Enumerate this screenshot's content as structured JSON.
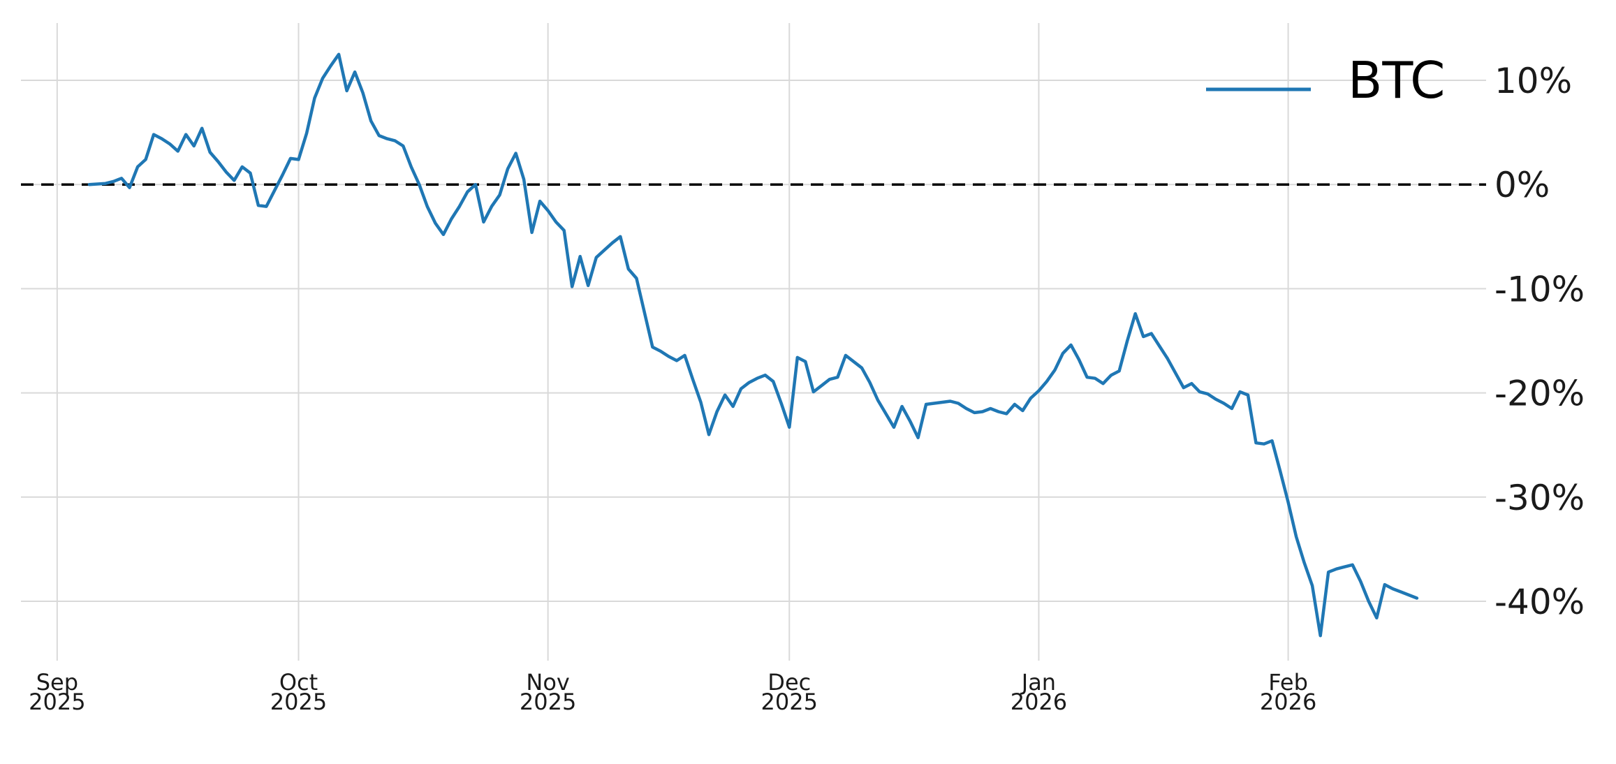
{
  "page": {
    "background_color": "#ffffff",
    "text_color": "#1a1a1a"
  },
  "chart_data": {
    "type": "line",
    "title": "",
    "grid": {
      "visible": true,
      "color": "#d9d9d9"
    },
    "legend": {
      "position": "upper-right",
      "entries": [
        {
          "label": "BTC",
          "color": "#1f77b4"
        }
      ]
    },
    "baseline": {
      "value": 0,
      "style": "dashed",
      "color": "#000000"
    },
    "x_axis": {
      "unit": "days since 2025-09-01",
      "xlim": [
        -4.5,
        177.6
      ],
      "ticks": [
        {
          "day": 0,
          "label": "Sep",
          "sublabel": "2025"
        },
        {
          "day": 30,
          "label": "Oct",
          "sublabel": "2025"
        },
        {
          "day": 61,
          "label": "Nov",
          "sublabel": "2025"
        },
        {
          "day": 91,
          "label": "Dec",
          "sublabel": "2025"
        },
        {
          "day": 122,
          "label": "Jan",
          "sublabel": "2026"
        },
        {
          "day": 153,
          "label": "Feb",
          "sublabel": "2026"
        }
      ]
    },
    "y_axis": {
      "side": "right",
      "unit": "percent change",
      "ylim": [
        -45.7,
        15.5
      ],
      "ticks": [
        {
          "value": 10,
          "label": "10%"
        },
        {
          "value": 0,
          "label": "0%"
        },
        {
          "value": -10,
          "label": "-10%"
        },
        {
          "value": -20,
          "label": "-20%"
        },
        {
          "value": -30,
          "label": "-30%"
        },
        {
          "value": -40,
          "label": "-40%"
        }
      ]
    },
    "series": [
      {
        "name": "BTC",
        "color": "#1f77b4",
        "start_date": "2025-09-05",
        "end_date": "2026-02-17",
        "points": [
          [
            4,
            0.0
          ],
          [
            5,
            0.05
          ],
          [
            6,
            0.1
          ],
          [
            7,
            0.3
          ],
          [
            8,
            0.6
          ],
          [
            9,
            -0.3
          ],
          [
            10,
            1.7
          ],
          [
            11,
            2.4
          ],
          [
            12,
            4.8
          ],
          [
            13,
            4.4
          ],
          [
            14,
            3.9
          ],
          [
            15,
            3.2
          ],
          [
            16,
            4.8
          ],
          [
            17,
            3.7
          ],
          [
            18,
            5.4
          ],
          [
            19,
            3.1
          ],
          [
            20,
            2.2
          ],
          [
            21,
            1.2
          ],
          [
            22,
            0.4
          ],
          [
            23,
            1.7
          ],
          [
            24,
            1.1
          ],
          [
            25,
            -2.0
          ],
          [
            26,
            -2.1
          ],
          [
            27,
            -0.6
          ],
          [
            28,
            0.9
          ],
          [
            29,
            2.5
          ],
          [
            30,
            2.4
          ],
          [
            31,
            4.9
          ],
          [
            32,
            8.3
          ],
          [
            33,
            10.2
          ],
          [
            34,
            11.4
          ],
          [
            35,
            12.5
          ],
          [
            36,
            9.0
          ],
          [
            37,
            10.8
          ],
          [
            38,
            8.8
          ],
          [
            39,
            6.1
          ],
          [
            40,
            4.7
          ],
          [
            41,
            4.4
          ],
          [
            42,
            4.2
          ],
          [
            43,
            3.7
          ],
          [
            44,
            1.7
          ],
          [
            45,
            0.0
          ],
          [
            46,
            -2.1
          ],
          [
            47,
            -3.7
          ],
          [
            48,
            -4.8
          ],
          [
            49,
            -3.3
          ],
          [
            50,
            -2.1
          ],
          [
            51,
            -0.7
          ],
          [
            52,
            0.0
          ],
          [
            53,
            -3.6
          ],
          [
            54,
            -2.1
          ],
          [
            55,
            -1.0
          ],
          [
            56,
            1.5
          ],
          [
            57,
            3.0
          ],
          [
            58,
            0.5
          ],
          [
            59,
            -4.6
          ],
          [
            60,
            -1.6
          ],
          [
            61,
            -2.5
          ],
          [
            62,
            -3.6
          ],
          [
            63,
            -4.4
          ],
          [
            64,
            -9.8
          ],
          [
            65,
            -6.9
          ],
          [
            66,
            -9.7
          ],
          [
            67,
            -7.0
          ],
          [
            68,
            -6.3
          ],
          [
            69,
            -5.6
          ],
          [
            70,
            -5.0
          ],
          [
            71,
            -8.1
          ],
          [
            72,
            -9.0
          ],
          [
            73,
            -12.3
          ],
          [
            74,
            -15.6
          ],
          [
            75,
            -16.0
          ],
          [
            76,
            -16.5
          ],
          [
            77,
            -16.9
          ],
          [
            78,
            -16.4
          ],
          [
            79,
            -18.7
          ],
          [
            80,
            -20.9
          ],
          [
            81,
            -24.0
          ],
          [
            82,
            -21.8
          ],
          [
            83,
            -20.2
          ],
          [
            84,
            -21.3
          ],
          [
            85,
            -19.6
          ],
          [
            86,
            -19.0
          ],
          [
            87,
            -18.6
          ],
          [
            88,
            -18.3
          ],
          [
            89,
            -18.9
          ],
          [
            90,
            -21.0
          ],
          [
            91,
            -23.3
          ],
          [
            92,
            -16.6
          ],
          [
            93,
            -17.0
          ],
          [
            94,
            -19.9
          ],
          [
            95,
            -19.3
          ],
          [
            96,
            -18.7
          ],
          [
            97,
            -18.5
          ],
          [
            98,
            -16.4
          ],
          [
            99,
            -17.0
          ],
          [
            100,
            -17.6
          ],
          [
            101,
            -19.0
          ],
          [
            102,
            -20.7
          ],
          [
            103,
            -22.0
          ],
          [
            104,
            -23.3
          ],
          [
            105,
            -21.3
          ],
          [
            106,
            -22.7
          ],
          [
            107,
            -24.3
          ],
          [
            108,
            -21.1
          ],
          [
            109,
            -21.0
          ],
          [
            110,
            -20.9
          ],
          [
            111,
            -20.8
          ],
          [
            112,
            -21.0
          ],
          [
            113,
            -21.5
          ],
          [
            114,
            -21.9
          ],
          [
            115,
            -21.8
          ],
          [
            116,
            -21.5
          ],
          [
            117,
            -21.8
          ],
          [
            118,
            -22.0
          ],
          [
            119,
            -21.1
          ],
          [
            120,
            -21.7
          ],
          [
            121,
            -20.5
          ],
          [
            122,
            -19.8
          ],
          [
            123,
            -18.9
          ],
          [
            124,
            -17.8
          ],
          [
            125,
            -16.2
          ],
          [
            126,
            -15.4
          ],
          [
            127,
            -16.8
          ],
          [
            128,
            -18.5
          ],
          [
            129,
            -18.6
          ],
          [
            130,
            -19.1
          ],
          [
            131,
            -18.3
          ],
          [
            132,
            -17.9
          ],
          [
            133,
            -15.0
          ],
          [
            134,
            -12.4
          ],
          [
            135,
            -14.6
          ],
          [
            136,
            -14.3
          ],
          [
            137,
            -15.5
          ],
          [
            138,
            -16.7
          ],
          [
            139,
            -18.1
          ],
          [
            140,
            -19.5
          ],
          [
            141,
            -19.1
          ],
          [
            142,
            -19.9
          ],
          [
            143,
            -20.1
          ],
          [
            144,
            -20.6
          ],
          [
            145,
            -21.0
          ],
          [
            146,
            -21.5
          ],
          [
            147,
            -19.9
          ],
          [
            148,
            -20.2
          ],
          [
            149,
            -24.8
          ],
          [
            150,
            -24.9
          ],
          [
            151,
            -24.6
          ],
          [
            152,
            -27.5
          ],
          [
            153,
            -30.5
          ],
          [
            154,
            -33.8
          ],
          [
            155,
            -36.3
          ],
          [
            156,
            -38.5
          ],
          [
            157,
            -43.3
          ],
          [
            158,
            -37.2
          ],
          [
            159,
            -36.9
          ],
          [
            160,
            -36.7
          ],
          [
            161,
            -36.5
          ],
          [
            162,
            -38.1
          ],
          [
            163,
            -40.0
          ],
          [
            164,
            -41.6
          ],
          [
            165,
            -38.4
          ],
          [
            166,
            -38.8
          ],
          [
            167,
            -39.1
          ],
          [
            168,
            -39.4
          ],
          [
            169,
            -39.7
          ]
        ]
      }
    ]
  }
}
